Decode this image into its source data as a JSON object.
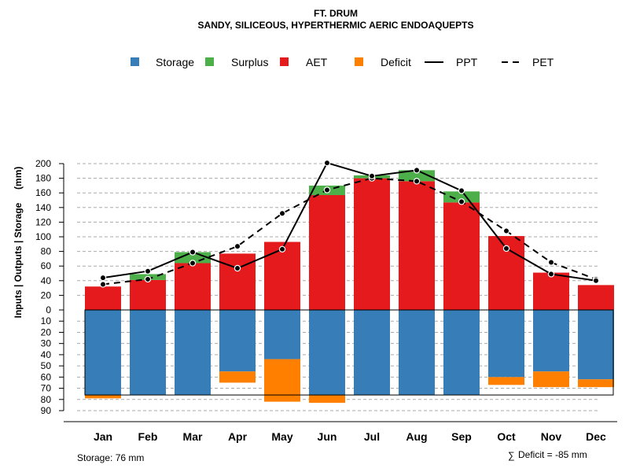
{
  "chart_data": {
    "type": "bar",
    "title": "FT. DRUM",
    "subtitle": "SANDY, SILICEOUS, HYPERTHERMIC AERIC ENDOAQUEPTS",
    "ylabel": "Inputs | Outputs | Storage     (mm)",
    "categories": [
      "Jan",
      "Feb",
      "Mar",
      "Apr",
      "May",
      "Jun",
      "Jul",
      "Aug",
      "Sep",
      "Oct",
      "Nov",
      "Dec"
    ],
    "ylim_upper": [
      0,
      210
    ],
    "ylim_lower": [
      0,
      90
    ],
    "yticks_upper": [
      20,
      40,
      60,
      80,
      100,
      120,
      140,
      160,
      180,
      200
    ],
    "yticks_lower": [
      0,
      10,
      20,
      30,
      40,
      50,
      60,
      70,
      80,
      90
    ],
    "series": [
      {
        "name": "AET",
        "kind": "bar",
        "color": "#e41a1c",
        "values": [
          32,
          41,
          64,
          77,
          93,
          157,
          180,
          176,
          147,
          101,
          51,
          34
        ]
      },
      {
        "name": "Surplus",
        "kind": "bar",
        "color": "#4daf4a",
        "values": [
          0,
          8,
          15,
          0,
          0,
          13,
          4,
          15,
          15,
          0,
          0,
          0
        ]
      },
      {
        "name": "Storage",
        "kind": "bar-below",
        "color": "#377eb8",
        "values": [
          76,
          76,
          76,
          55,
          44,
          76,
          76,
          76,
          76,
          60,
          55,
          62
        ]
      },
      {
        "name": "Deficit",
        "kind": "bar-below",
        "color": "#ff7f00",
        "values": [
          3,
          0,
          0,
          10,
          38,
          7,
          0,
          0,
          0,
          7,
          14,
          7
        ]
      },
      {
        "name": "PPT",
        "kind": "line",
        "color": "#000000",
        "values": [
          44,
          53,
          79,
          57,
          83,
          201,
          183,
          191,
          163,
          84,
          49,
          40
        ]
      },
      {
        "name": "PET",
        "kind": "dashed-line",
        "color": "#000000",
        "values": [
          35,
          42,
          64,
          87,
          132,
          164,
          180,
          176,
          148,
          108,
          65,
          42
        ]
      }
    ],
    "legend": [
      {
        "label": "Storage",
        "type": "box",
        "color": "#377eb8"
      },
      {
        "label": "Surplus",
        "type": "box",
        "color": "#4daf4a"
      },
      {
        "label": "AET",
        "type": "box",
        "color": "#e41a1c"
      },
      {
        "label": "Deficit",
        "type": "box",
        "color": "#ff7f00"
      },
      {
        "label": "PPT",
        "type": "line"
      },
      {
        "label": "PET",
        "type": "dashed"
      }
    ],
    "legend_position": "top",
    "storage_capacity_mm": 76,
    "grid": true
  },
  "footer": {
    "storage_label": "Storage: 76 mm",
    "deficit_sum_symbol": "∑",
    "deficit_label": "Deficit = -85 mm"
  }
}
